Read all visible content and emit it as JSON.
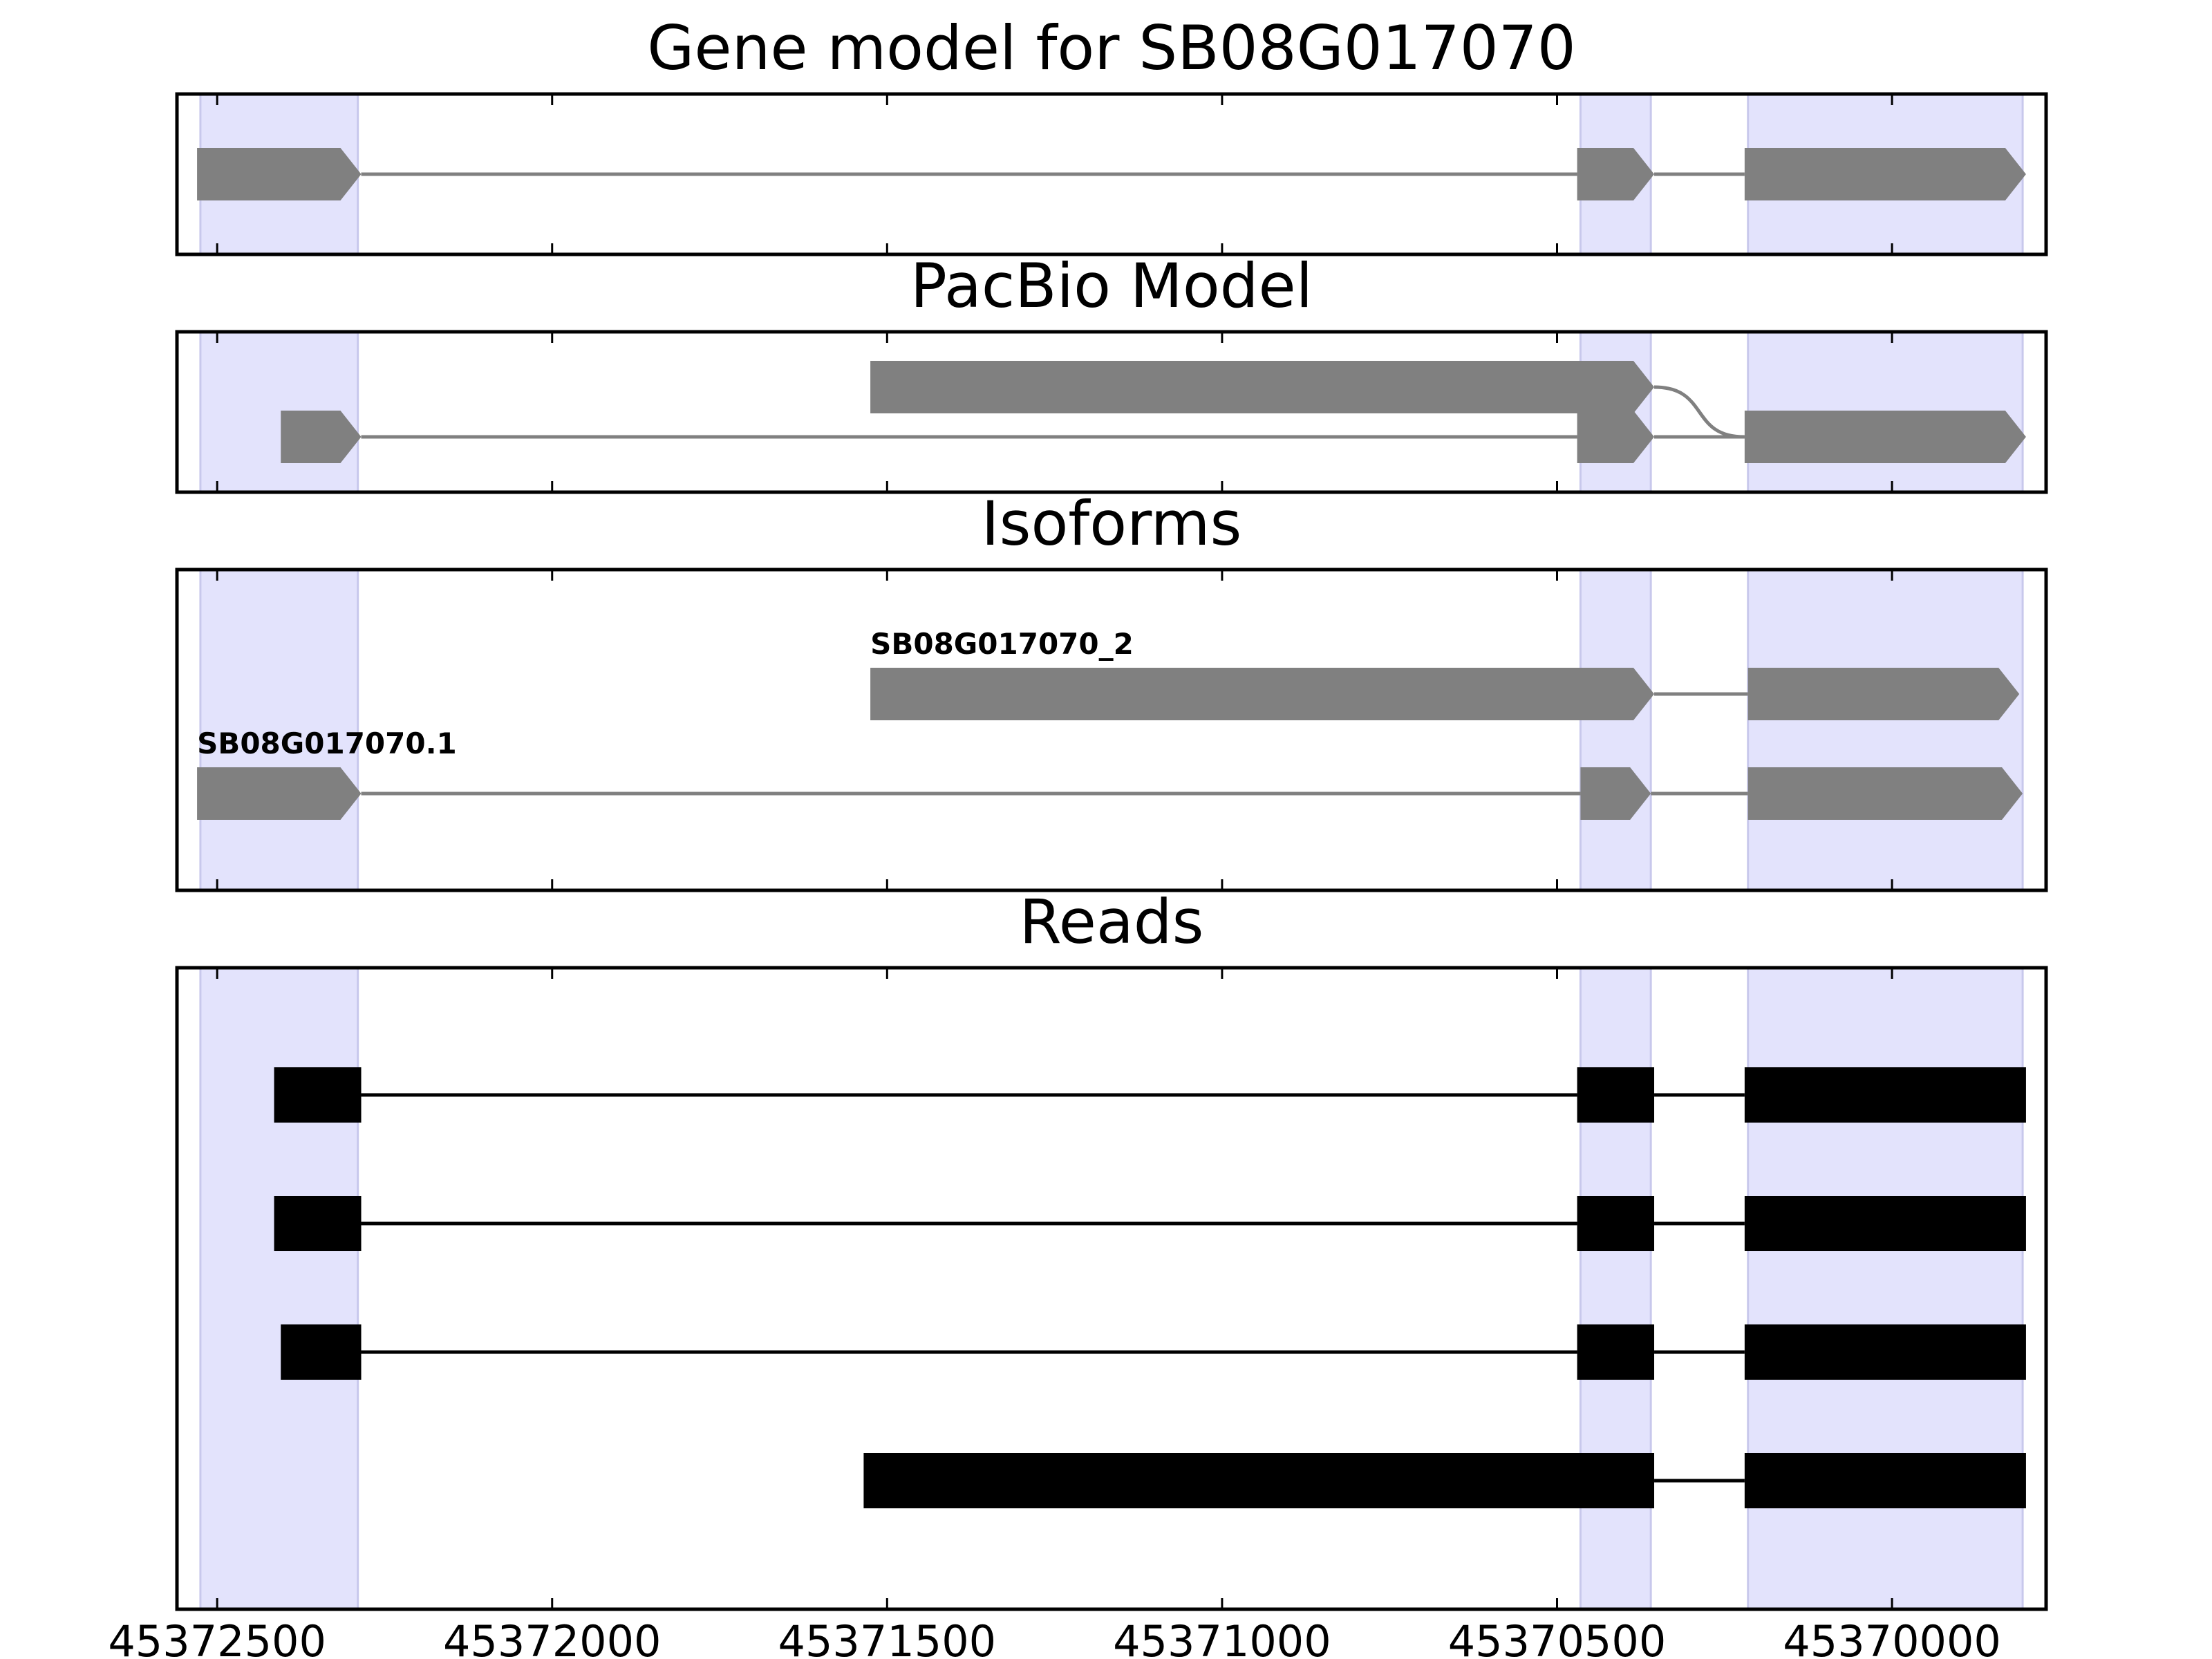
{
  "chart_data": {
    "type": "gene-track",
    "x_axis": {
      "reversed": true,
      "range": [
        45372560,
        45369770
      ],
      "ticks": [
        45372500,
        45372000,
        45371500,
        45371000,
        45370500,
        45370000
      ],
      "tick_labels": [
        "45372500",
        "45372000",
        "45371500",
        "45371000",
        "45370500",
        "45370000"
      ]
    },
    "highlight_regions": [
      [
        45372525,
        45372290
      ],
      [
        45370465,
        45370360
      ],
      [
        45370215,
        45369805
      ]
    ],
    "colors": {
      "feature": "#808080",
      "read": "#000000",
      "highlight": "#e3e3fc",
      "highlight_edge": "#c8c8ec"
    },
    "panels": [
      {
        "title": "Gene model for SB08G017070",
        "kind": "arrows",
        "tracks": [
          {
            "label": "",
            "exons": [
              [
                45372530,
                45372285
              ],
              [
                45370470,
                45370355
              ],
              [
                45370220,
                45369800
              ]
            ]
          }
        ]
      },
      {
        "title": "PacBio Model",
        "kind": "arrows",
        "tracks": [
          {
            "label": "",
            "exons": [
              [
                45371525,
                45370355
              ]
            ],
            "cross_to_next": true
          },
          {
            "label": "",
            "exons": [
              [
                45372405,
                45372285
              ],
              [
                45370470,
                45370355
              ],
              [
                45370220,
                45369800
              ]
            ]
          }
        ]
      },
      {
        "title": "Isoforms",
        "kind": "arrows",
        "tracks": [
          {
            "label": "SB08G017070_2",
            "exons": [
              [
                45371525,
                45370355
              ],
              [
                45370215,
                45369810
              ]
            ]
          },
          {
            "label": "SB08G017070.1",
            "exons": [
              [
                45372530,
                45372285
              ],
              [
                45370465,
                45370360
              ],
              [
                45370215,
                45369805
              ]
            ]
          }
        ]
      },
      {
        "title": "Reads",
        "kind": "blocks",
        "tracks": [
          {
            "label": "",
            "exons": [
              [
                45372415,
                45372285
              ],
              [
                45370470,
                45370355
              ],
              [
                45370220,
                45369800
              ]
            ]
          },
          {
            "label": "",
            "exons": [
              [
                45372415,
                45372285
              ],
              [
                45370470,
                45370355
              ],
              [
                45370220,
                45369800
              ]
            ]
          },
          {
            "label": "",
            "exons": [
              [
                45372405,
                45372285
              ],
              [
                45370470,
                45370355
              ],
              [
                45370220,
                45369800
              ]
            ]
          },
          {
            "label": "",
            "exons": [
              [
                45371535,
                45370355
              ],
              [
                45370220,
                45369800
              ]
            ]
          }
        ]
      }
    ]
  }
}
